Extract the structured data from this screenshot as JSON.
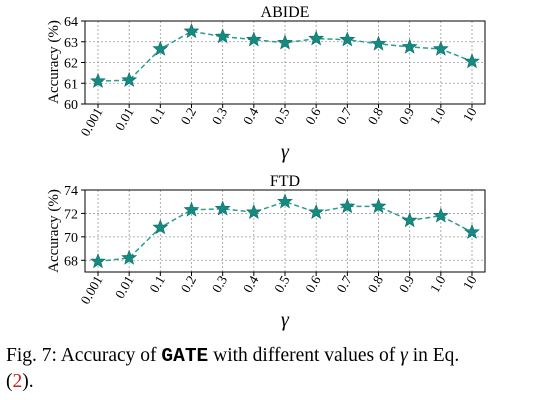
{
  "chart_data": [
    {
      "type": "line",
      "title": "ABIDE",
      "ylabel": "Accuracy (%)",
      "xlabel": "γ",
      "categories": [
        "0.001",
        "0.01",
        "0.1",
        "0.2",
        "0.3",
        "0.4",
        "0.5",
        "0.6",
        "0.7",
        "0.8",
        "0.9",
        "1.0",
        "10"
      ],
      "values": [
        61.1,
        61.15,
        62.65,
        63.5,
        63.25,
        63.1,
        62.95,
        63.15,
        63.1,
        62.9,
        62.75,
        62.65,
        62.05
      ],
      "ylim": [
        60,
        64
      ],
      "yticks": [
        "60",
        "61",
        "62",
        "63",
        "64"
      ],
      "yticks_values": [
        60,
        61,
        62,
        63,
        64
      ],
      "grid": true,
      "color": "#2a9d8f",
      "marker": "star"
    },
    {
      "type": "line",
      "title": "FTD",
      "ylabel": "Accuracy (%)",
      "xlabel": "γ",
      "categories": [
        "0.001",
        "0.01",
        "0.1",
        "0.2",
        "0.3",
        "0.4",
        "0.5",
        "0.6",
        "0.7",
        "0.8",
        "0.9",
        "1.0",
        "10"
      ],
      "values": [
        67.9,
        68.2,
        70.8,
        72.3,
        72.4,
        72.1,
        73.0,
        72.1,
        72.6,
        72.6,
        71.4,
        71.8,
        70.4
      ],
      "ylim": [
        67,
        74
      ],
      "yticks": [
        "68",
        "70",
        "72",
        "74"
      ],
      "yticks_values": [
        68,
        70,
        72,
        74
      ],
      "grid": true,
      "color": "#2a9d8f",
      "marker": "star"
    }
  ],
  "caption": {
    "prefix": "Fig. 7: Accuracy of ",
    "method": "GATE",
    "middle": " with different values of ",
    "symbol": "γ",
    "suffix_before_ref": " in Eq.",
    "ref_open": "(",
    "ref_number": "2",
    "ref_close": ")."
  }
}
